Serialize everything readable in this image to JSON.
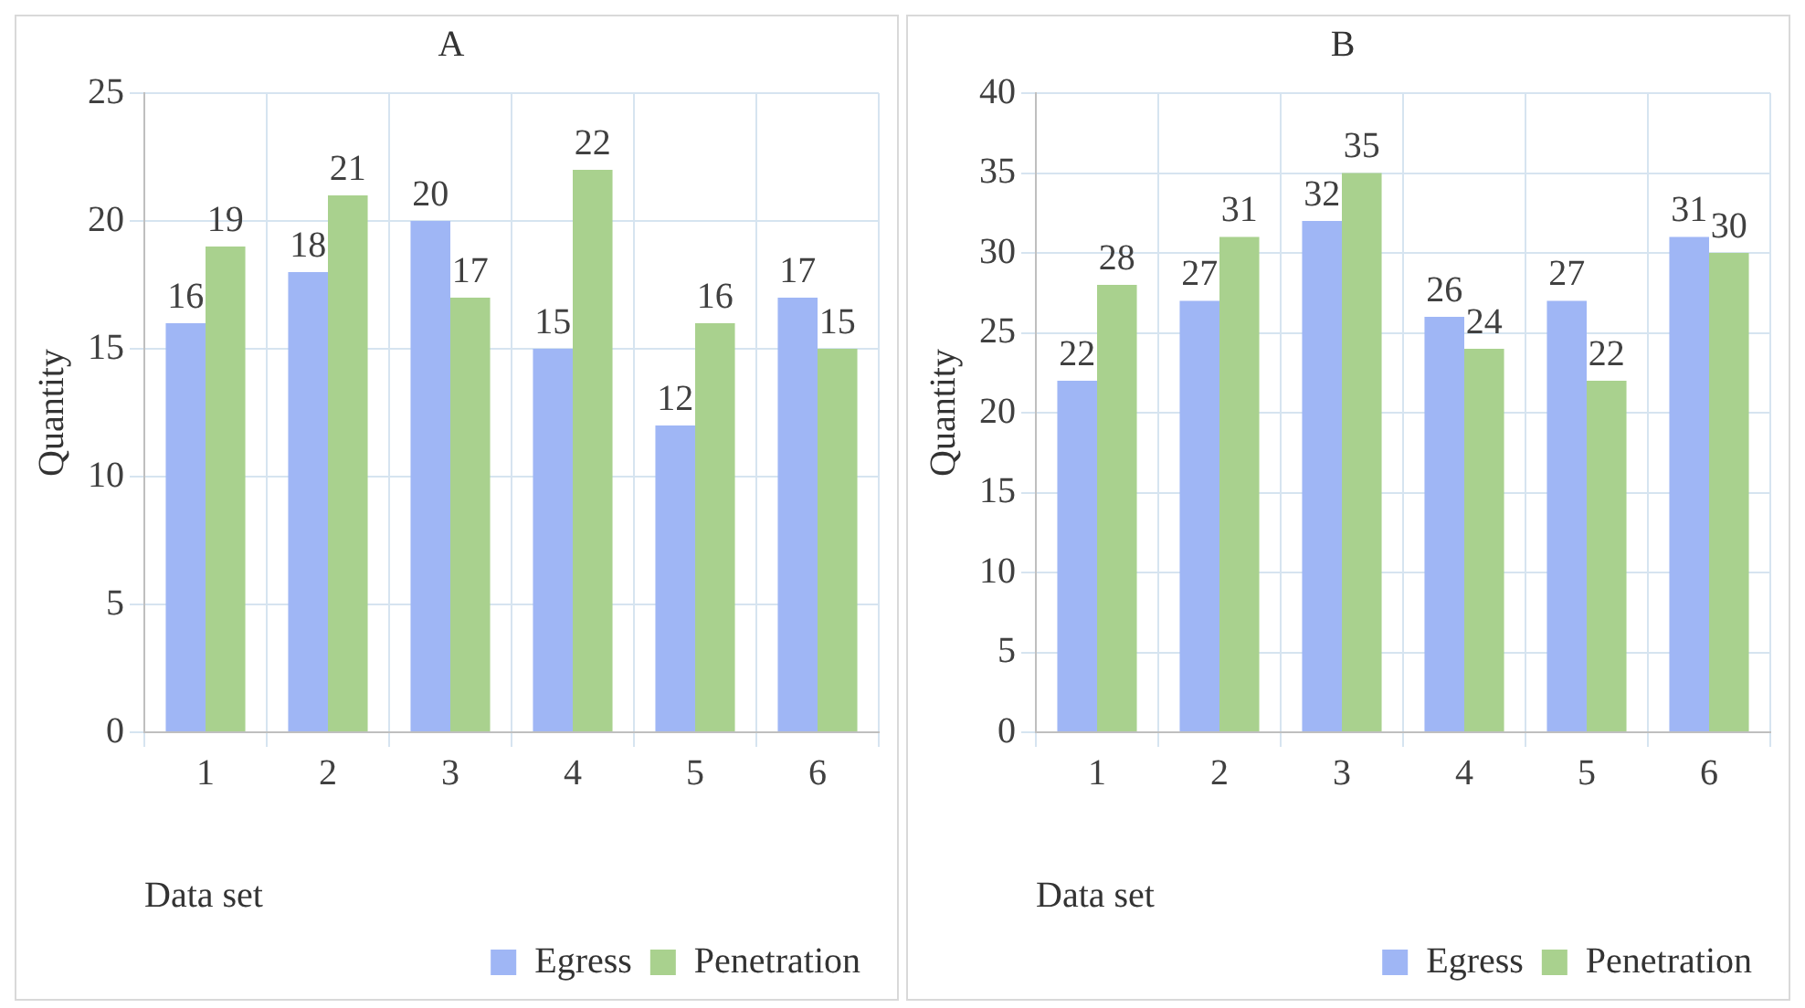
{
  "chart_data": [
    {
      "type": "bar",
      "title": "A",
      "xlabel": "Data set",
      "ylabel": "Quantity",
      "categories": [
        "1",
        "2",
        "3",
        "4",
        "5",
        "6"
      ],
      "series": [
        {
          "name": "Egress",
          "color": "#9fb6f5",
          "values": [
            16,
            18,
            20,
            15,
            12,
            17
          ]
        },
        {
          "name": "Penetration",
          "color": "#a9d18e",
          "values": [
            19,
            21,
            17,
            22,
            16,
            15
          ]
        }
      ],
      "ylim": [
        0,
        25
      ],
      "yticks": [
        0,
        5,
        10,
        15,
        20,
        25
      ],
      "grid": true,
      "legend": "bottom right",
      "data_labels": true
    },
    {
      "type": "bar",
      "title": "B",
      "xlabel": "Data set",
      "ylabel": "Quantity",
      "categories": [
        "1",
        "2",
        "3",
        "4",
        "5",
        "6"
      ],
      "series": [
        {
          "name": "Egress",
          "color": "#9fb6f5",
          "values": [
            22,
            27,
            32,
            26,
            27,
            31
          ]
        },
        {
          "name": "Penetration",
          "color": "#a9d18e",
          "values": [
            28,
            31,
            35,
            24,
            22,
            30
          ]
        }
      ],
      "ylim": [
        0,
        40
      ],
      "yticks": [
        0,
        5,
        10,
        15,
        20,
        25,
        30,
        35,
        40
      ],
      "grid": true,
      "legend": "bottom right",
      "data_labels": true
    }
  ]
}
